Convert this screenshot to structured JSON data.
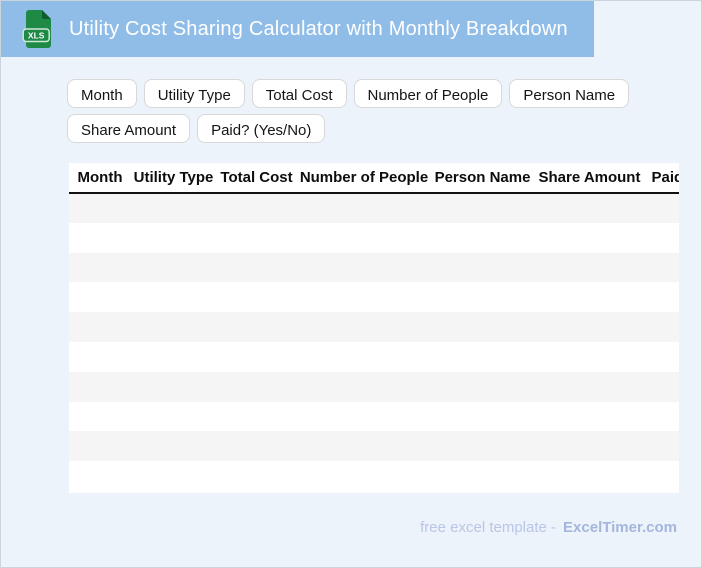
{
  "banner": {
    "title": "Utility Cost Sharing Calculator with Monthly Breakdown",
    "icon_label": "XLS"
  },
  "chip_rows": [
    [
      "Month",
      "Utility Type",
      "Total Cost",
      "Number of People",
      "Person Name"
    ],
    [
      "Share Amount",
      "Paid? (Yes/No)"
    ]
  ],
  "table": {
    "columns": [
      "Month",
      "Utility Type",
      "Total Cost",
      "Number of People",
      "Person Name",
      "Share Amount",
      "Paid? (Yes/No)"
    ],
    "rows": [
      [
        "",
        "",
        "",
        "",
        "",
        "",
        ""
      ],
      [
        "",
        "",
        "",
        "",
        "",
        "",
        ""
      ],
      [
        "",
        "",
        "",
        "",
        "",
        "",
        ""
      ],
      [
        "",
        "",
        "",
        "",
        "",
        "",
        ""
      ],
      [
        "",
        "",
        "",
        "",
        "",
        "",
        ""
      ],
      [
        "",
        "",
        "",
        "",
        "",
        "",
        ""
      ],
      [
        "",
        "",
        "",
        "",
        "",
        "",
        ""
      ],
      [
        "",
        "",
        "",
        "",
        "",
        "",
        ""
      ],
      [
        "",
        "",
        "",
        "",
        "",
        "",
        ""
      ],
      [
        "",
        "",
        "",
        "",
        "",
        "",
        ""
      ]
    ]
  },
  "footer": {
    "tagline": "free excel template -",
    "brand": "ExcelTimer.com"
  },
  "colors": {
    "banner_blue": "#90bde8",
    "page_bg": "#edf3fb",
    "border_gray": "#cdd3db",
    "stripe_gray": "#f5f5f5",
    "header_divider": "#111111",
    "icon_green": "#1e8a46",
    "icon_fold_green": "#0d5d2e",
    "icon_badge_border": "#cfe8d8",
    "footer_text": "#b9c5e5",
    "footer_brand": "#a4b6dc"
  }
}
